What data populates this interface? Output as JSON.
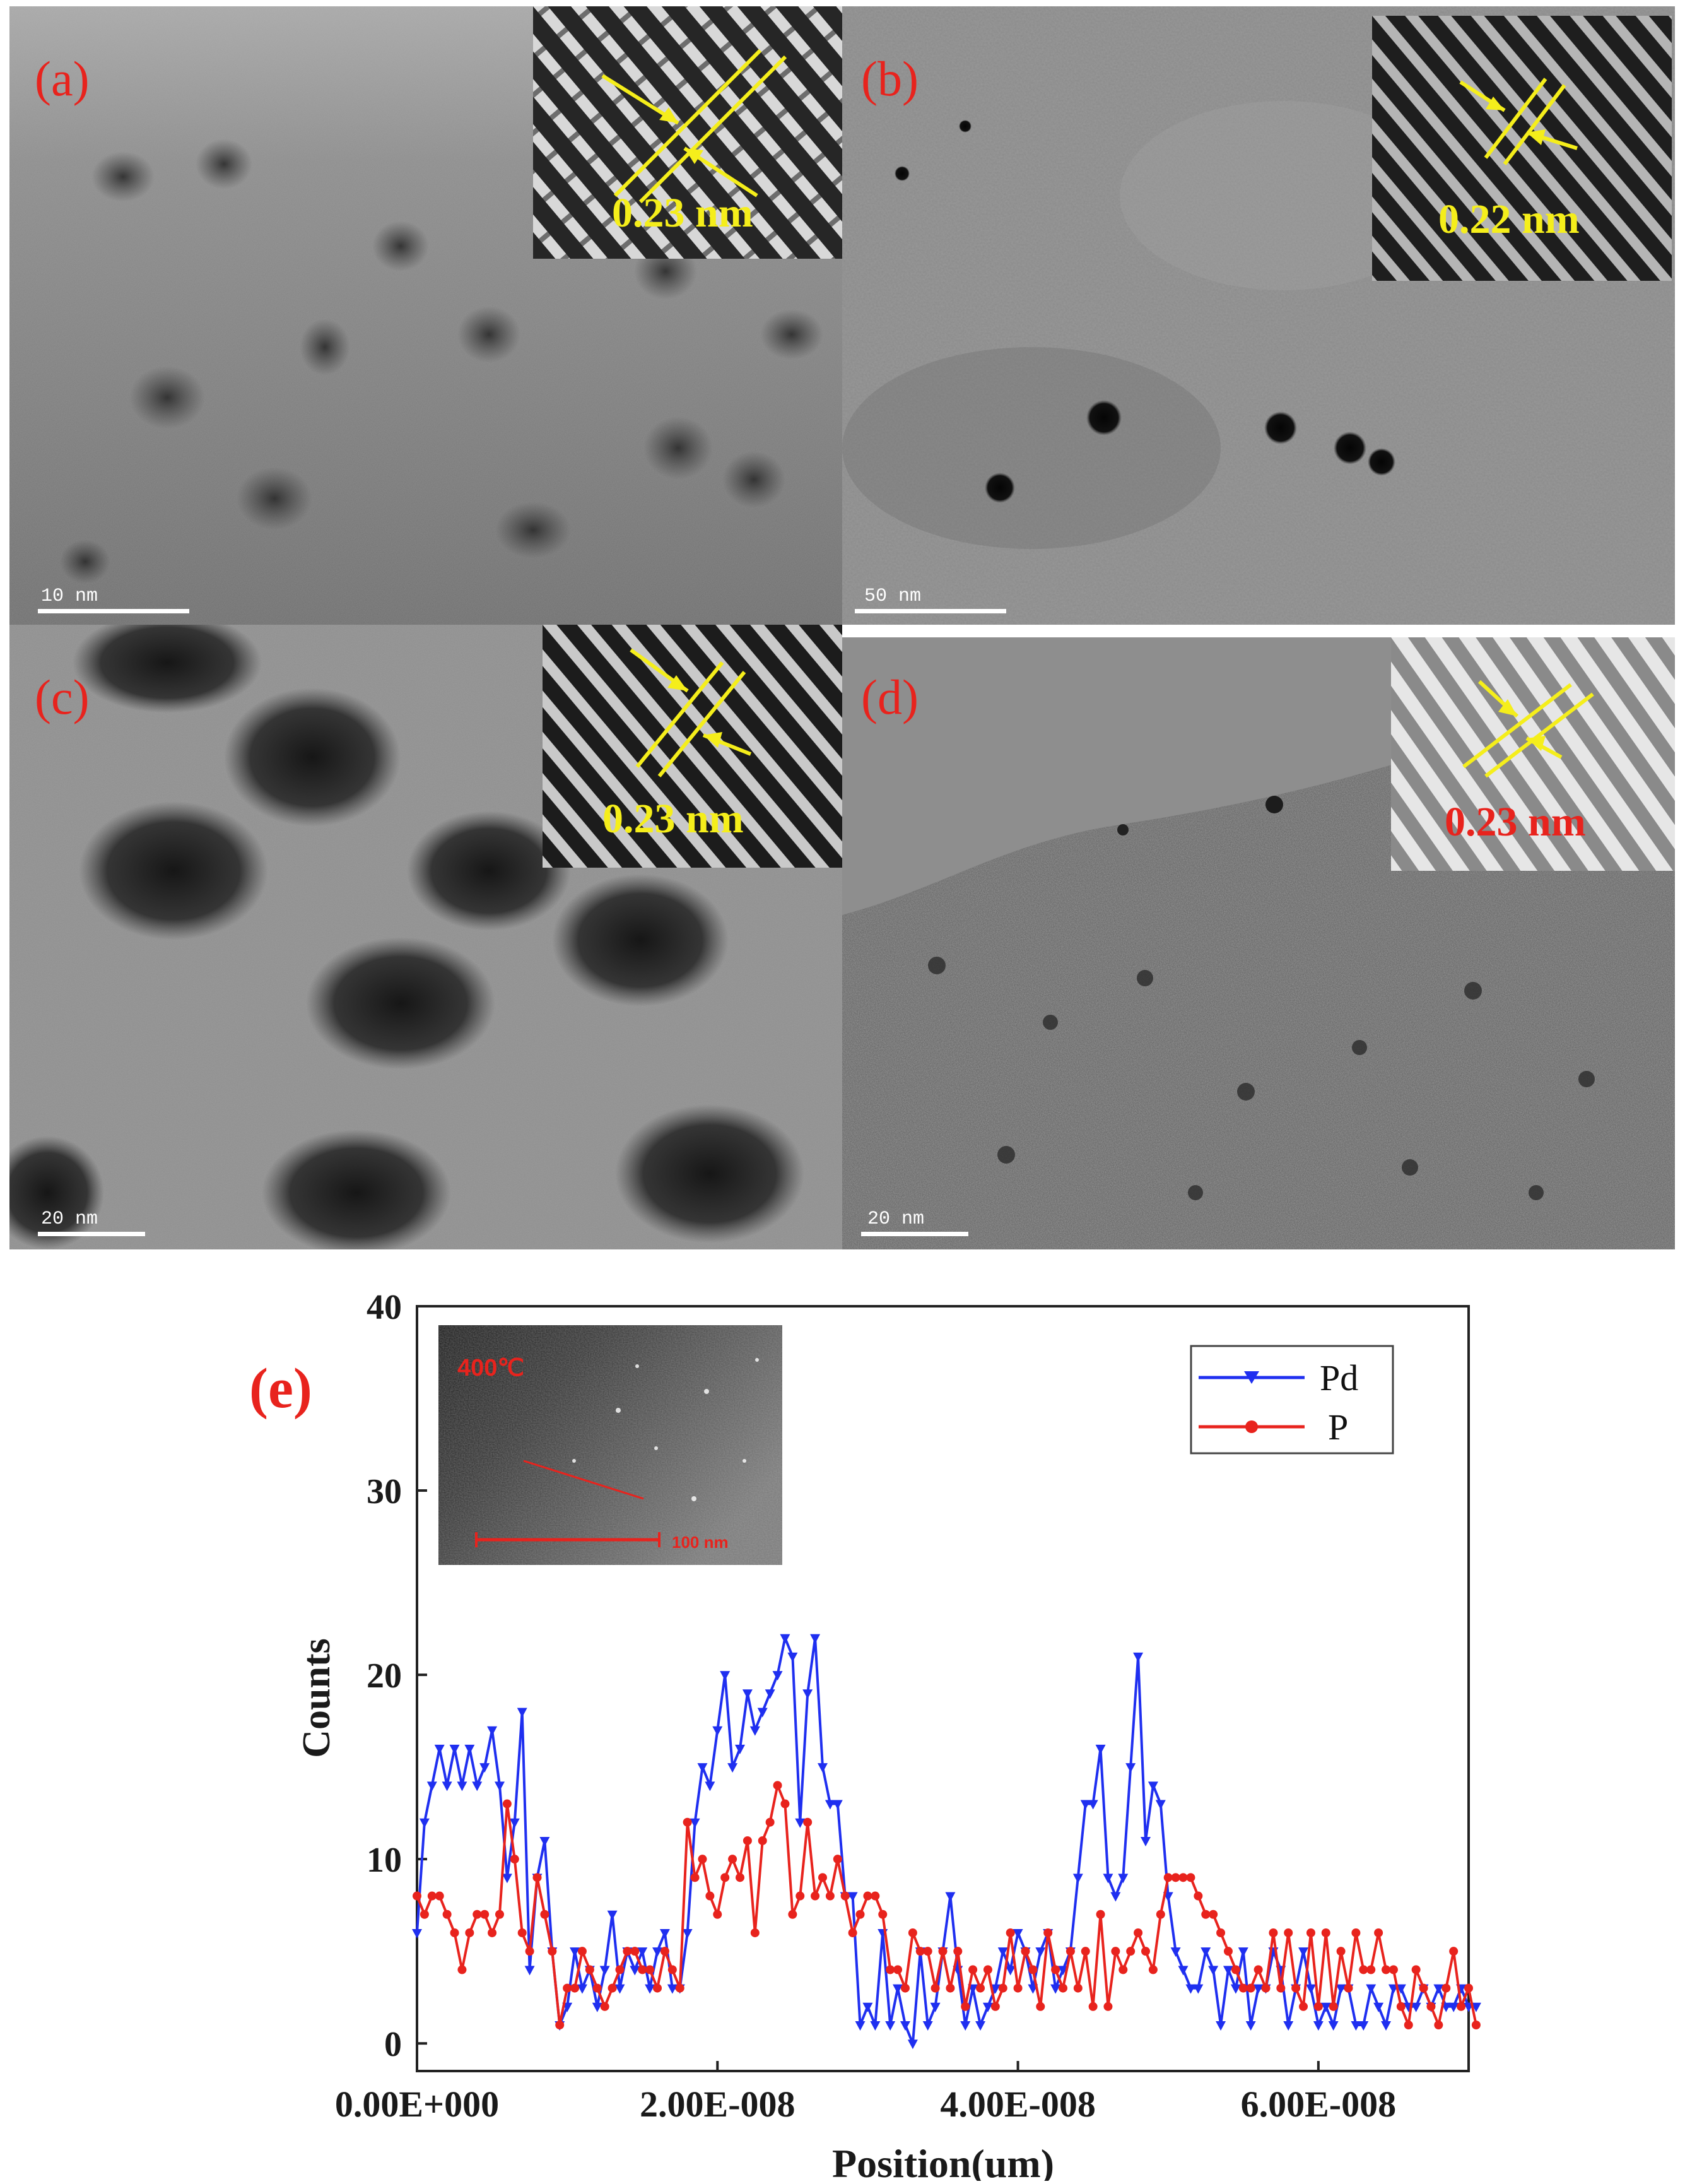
{
  "figure": {
    "panels": [
      {
        "id": "a",
        "label": "(a)",
        "spacing_label": "0.23 nm",
        "spacing_color": "#f5ee1b",
        "scale_label": "10 nm"
      },
      {
        "id": "b",
        "label": "(b)",
        "spacing_label": "0.22 nm",
        "spacing_color": "#f5ee1b",
        "scale_label": "50 nm"
      },
      {
        "id": "c",
        "label": "(c)",
        "spacing_label": "0.23 nm",
        "spacing_color": "#f5ee1b",
        "scale_label": "20 nm"
      },
      {
        "id": "d",
        "label": "(d)",
        "spacing_label": "0.23 nm",
        "spacing_color": "#e8231d",
        "scale_label": "20 nm"
      }
    ],
    "panel_e": {
      "label": "(e)",
      "inset_temperature_label": "400℃",
      "inset_scale_label": "100 nm"
    }
  },
  "chart_data": {
    "type": "line",
    "title": "",
    "xlabel": "Position(um)",
    "ylabel": "Counts",
    "xlim": [
      0,
      7e-08
    ],
    "ylim": [
      -1.5,
      40
    ],
    "x_ticks": [
      0,
      2e-08,
      4e-08,
      6e-08
    ],
    "x_tick_labels": [
      "0.00E+000",
      "2.00E-008",
      "4.00E-008",
      "6.00E-008"
    ],
    "y_ticks": [
      0,
      10,
      20,
      30,
      40
    ],
    "y_tick_labels": [
      "0",
      "10",
      "20",
      "30",
      "40"
    ],
    "legend_position": "top-right",
    "grid": false,
    "series": [
      {
        "name": "Pd",
        "color": "#1f2ff0",
        "marker": "triangle-down",
        "x_start": 0,
        "x_step": 5e-10,
        "values": [
          6,
          12,
          14,
          16,
          14,
          16,
          14,
          16,
          14,
          15,
          17,
          14,
          9,
          12,
          18,
          4,
          9,
          11,
          5,
          1,
          2,
          5,
          3,
          4,
          2,
          4,
          7,
          3,
          5,
          4,
          5,
          3,
          5,
          6,
          3,
          3,
          6,
          12,
          15,
          14,
          17,
          20,
          15,
          16,
          19,
          17,
          18,
          19,
          20,
          22,
          21,
          12,
          19,
          22,
          15,
          13,
          13,
          8,
          8,
          1,
          2,
          1,
          6,
          1,
          3,
          1,
          0,
          5,
          1,
          2,
          5,
          8,
          4,
          1,
          3,
          1,
          2,
          3,
          5,
          4,
          6,
          5,
          3,
          5,
          6,
          3,
          4,
          5,
          9,
          13,
          13,
          16,
          9,
          8,
          9,
          15,
          21,
          11,
          14,
          13,
          8,
          5,
          4,
          3,
          3,
          5,
          4,
          1,
          4,
          3,
          5,
          1,
          3,
          3,
          5,
          4,
          1,
          3,
          5,
          3,
          1,
          2,
          1,
          3,
          3,
          1,
          1,
          3,
          2,
          1,
          3,
          3,
          2,
          2,
          3,
          2,
          3,
          2,
          2,
          3,
          2,
          2
        ]
      },
      {
        "name": "P",
        "color": "#e8231d",
        "marker": "circle",
        "x_start": 0,
        "x_step": 5e-10,
        "values": [
          8,
          7,
          8,
          8,
          7,
          6,
          4,
          6,
          7,
          7,
          6,
          7,
          13,
          10,
          6,
          5,
          9,
          7,
          5,
          1,
          3,
          3,
          5,
          4,
          3,
          2,
          3,
          4,
          5,
          5,
          4,
          4,
          3,
          5,
          4,
          3,
          12,
          9,
          10,
          8,
          7,
          9,
          10,
          9,
          11,
          6,
          11,
          12,
          14,
          13,
          7,
          8,
          12,
          8,
          9,
          8,
          10,
          8,
          6,
          7,
          8,
          8,
          7,
          4,
          4,
          3,
          6,
          5,
          5,
          3,
          5,
          3,
          5,
          2,
          4,
          3,
          4,
          2,
          3,
          6,
          3,
          5,
          4,
          2,
          6,
          4,
          3,
          5,
          3,
          5,
          2,
          7,
          2,
          5,
          4,
          5,
          6,
          5,
          4,
          7,
          9,
          9,
          9,
          9,
          8,
          7,
          7,
          6,
          5,
          4,
          3,
          3,
          4,
          3,
          6,
          3,
          6,
          3,
          2,
          6,
          2,
          6,
          2,
          5,
          3,
          6,
          4,
          4,
          6,
          4,
          4,
          2,
          1,
          4,
          3,
          2,
          1,
          3,
          5,
          2,
          3,
          1
        ]
      }
    ]
  }
}
